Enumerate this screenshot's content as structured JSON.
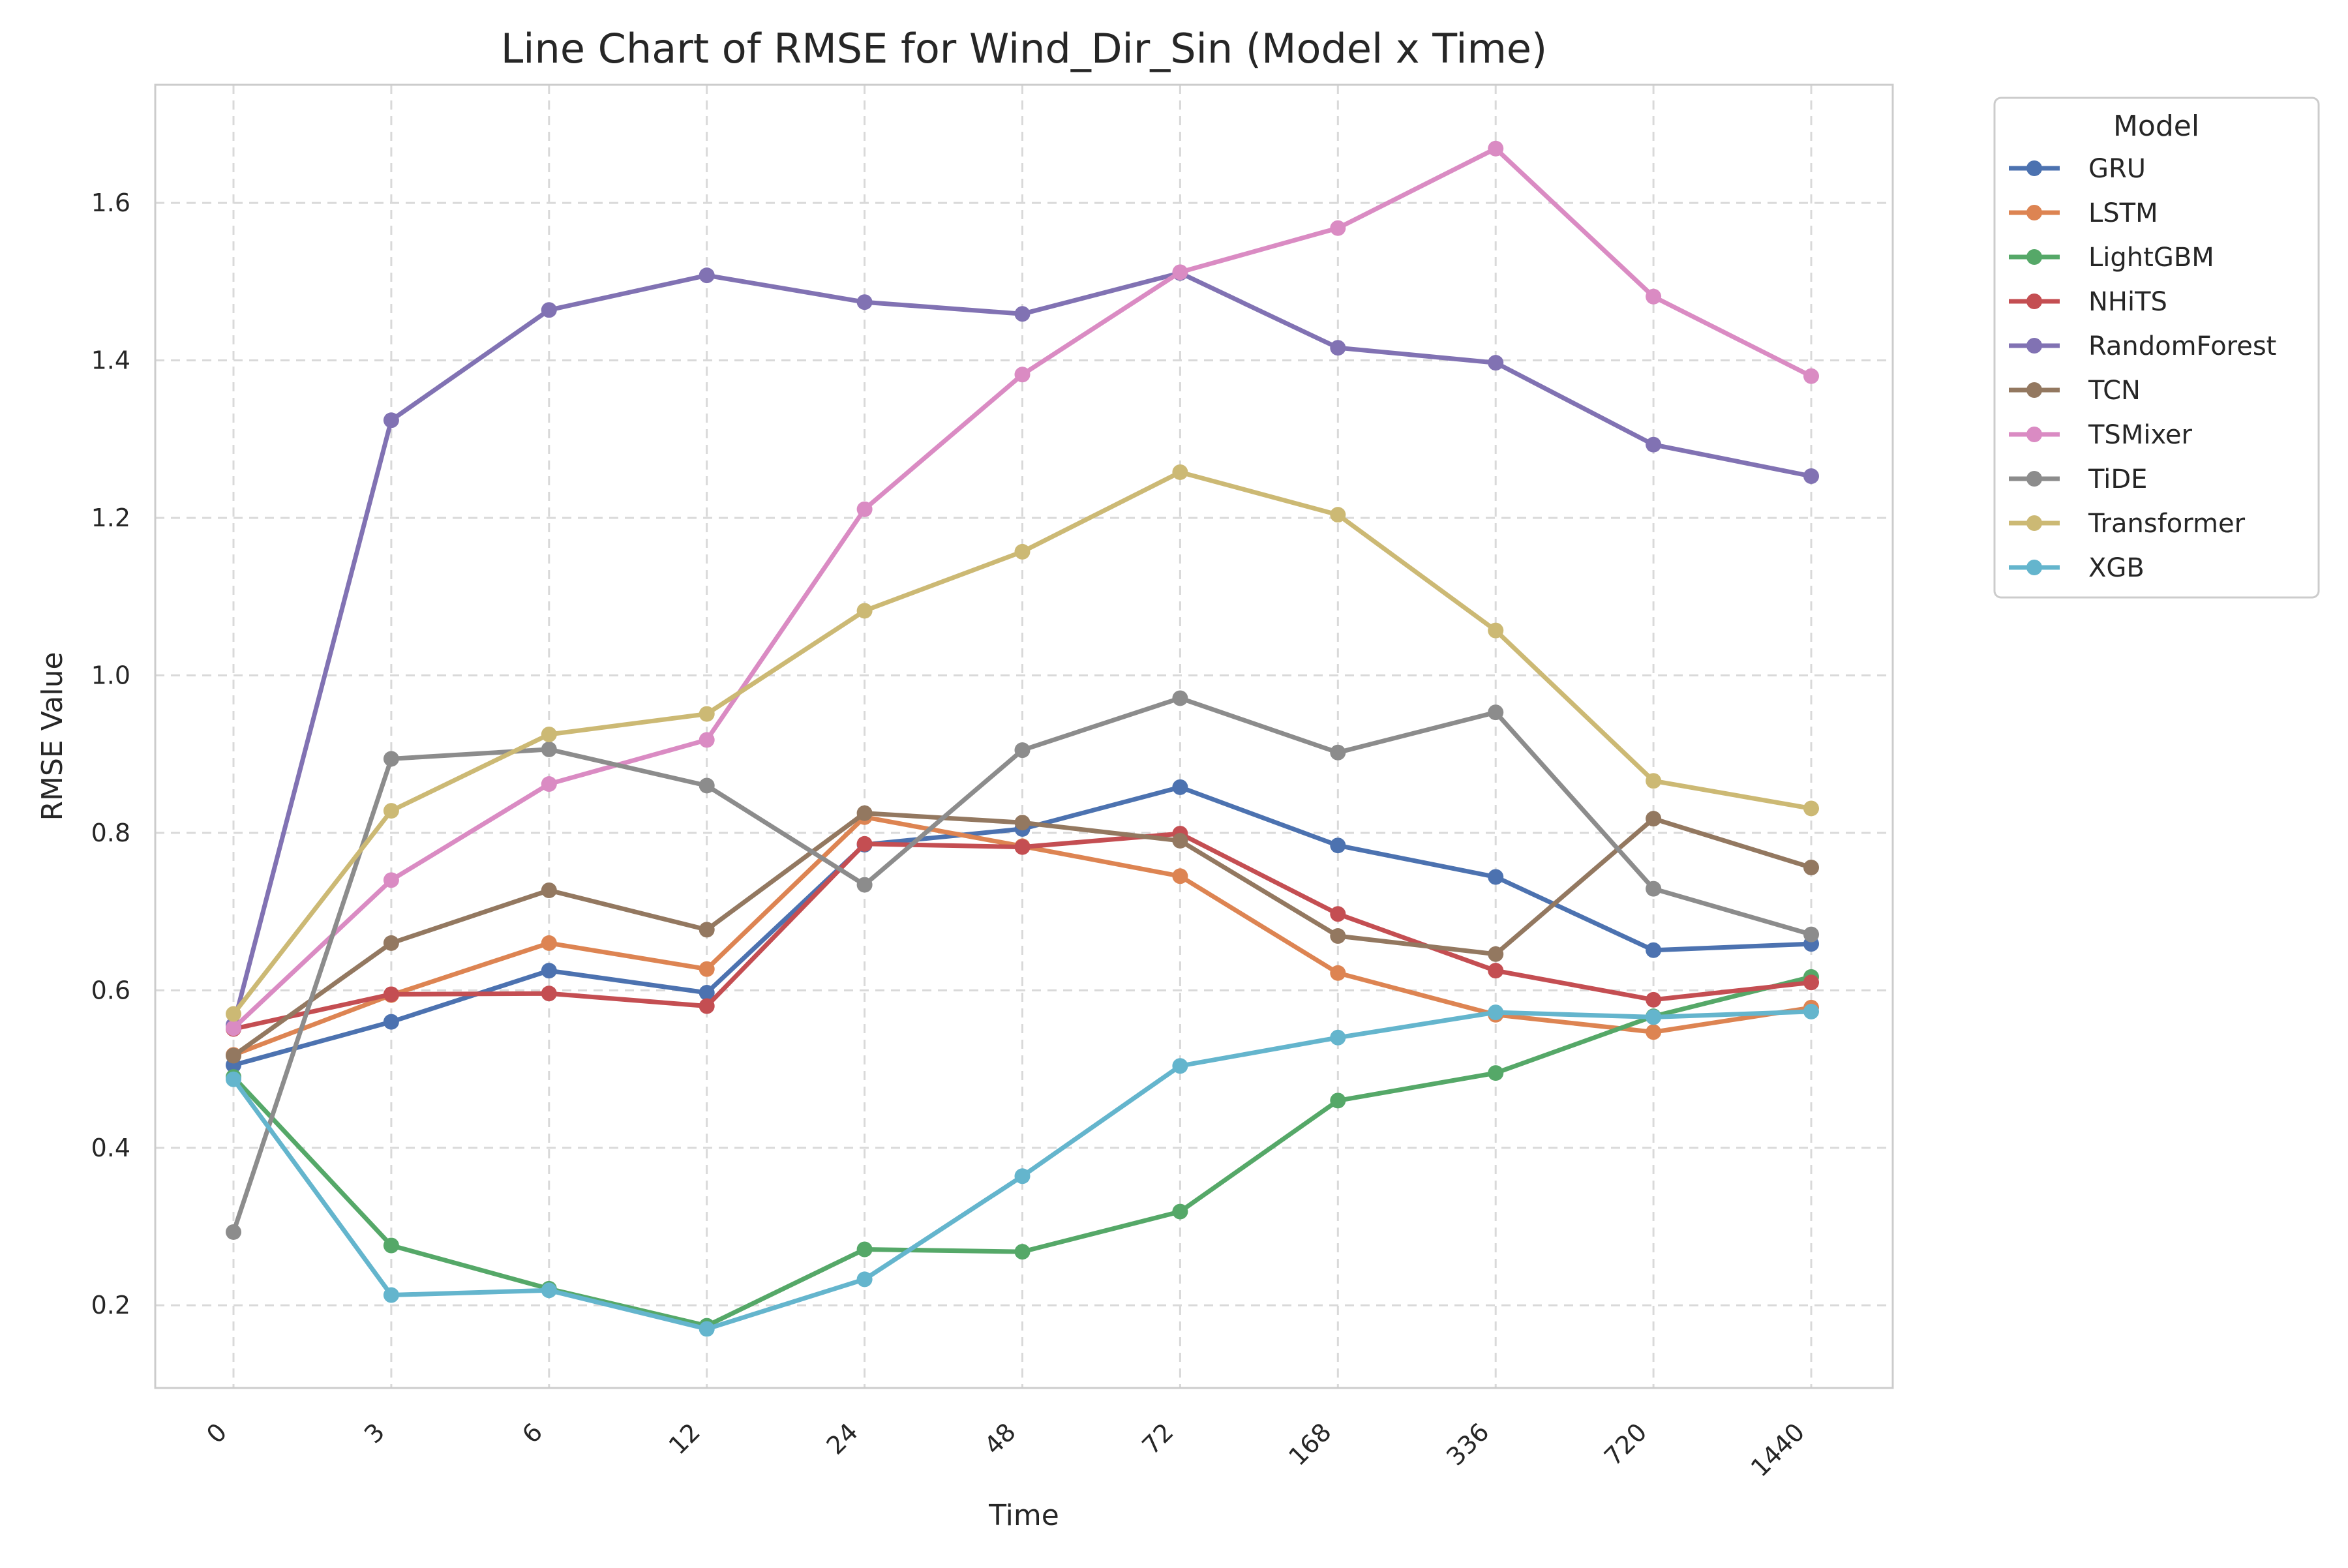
{
  "chart_data": {
    "type": "line",
    "title": "Line Chart of RMSE for Wind_Dir_Sin (Model x Time)",
    "xlabel": "Time",
    "ylabel": "RMSE Value",
    "categories": [
      "0",
      "3",
      "6",
      "12",
      "24",
      "48",
      "72",
      "168",
      "336",
      "720",
      "1440"
    ],
    "ylim": [
      0.095,
      1.75
    ],
    "yticks": [
      0.2,
      0.4,
      0.6,
      0.8,
      1.0,
      1.2,
      1.4,
      1.6
    ],
    "ytick_labels": [
      "0.2",
      "0.4",
      "0.6",
      "0.8",
      "1.0",
      "1.2",
      "1.4",
      "1.6"
    ],
    "grid": true,
    "legend": {
      "title": "Model",
      "placement": "outside-top-right"
    },
    "series": [
      {
        "name": "GRU",
        "color": "#4c72b0",
        "values": [
          0.505,
          0.56,
          0.625,
          0.597,
          0.785,
          0.805,
          0.858,
          0.784,
          0.744,
          0.651,
          0.659
        ]
      },
      {
        "name": "LSTM",
        "color": "#dd8452",
        "values": [
          0.518,
          0.594,
          0.66,
          0.627,
          0.82,
          0.783,
          0.745,
          0.622,
          0.569,
          0.547,
          0.578
        ]
      },
      {
        "name": "LightGBM",
        "color": "#55a868",
        "values": [
          0.49,
          0.276,
          0.221,
          0.174,
          0.271,
          0.268,
          0.319,
          0.46,
          0.495,
          0.567,
          0.617
        ]
      },
      {
        "name": "NHiTS",
        "color": "#c44e52",
        "values": [
          0.551,
          0.595,
          0.596,
          0.58,
          0.786,
          0.782,
          0.799,
          0.697,
          0.625,
          0.588,
          0.61
        ]
      },
      {
        "name": "RandomForest",
        "color": "#8172b3",
        "values": [
          0.556,
          1.324,
          1.464,
          1.508,
          1.474,
          1.459,
          1.511,
          1.416,
          1.397,
          1.293,
          1.253
        ]
      },
      {
        "name": "TCN",
        "color": "#937860",
        "values": [
          0.517,
          0.66,
          0.727,
          0.677,
          0.825,
          0.813,
          0.79,
          0.669,
          0.646,
          0.818,
          0.756
        ]
      },
      {
        "name": "TSMixer",
        "color": "#da8bc3",
        "values": [
          0.552,
          0.74,
          0.862,
          0.918,
          1.211,
          1.382,
          1.512,
          1.568,
          1.669,
          1.481,
          1.38
        ]
      },
      {
        "name": "TiDE",
        "color": "#8c8c8c",
        "values": [
          0.293,
          0.894,
          0.906,
          0.86,
          0.734,
          0.905,
          0.971,
          0.902,
          0.953,
          0.729,
          0.671
        ]
      },
      {
        "name": "Transformer",
        "color": "#ccb974",
        "values": [
          0.57,
          0.828,
          0.925,
          0.951,
          1.082,
          1.157,
          1.258,
          1.204,
          1.057,
          0.866,
          0.831
        ]
      },
      {
        "name": "XGB",
        "color": "#64b5cd",
        "values": [
          0.487,
          0.213,
          0.219,
          0.17,
          0.233,
          0.364,
          0.504,
          0.54,
          0.572,
          0.566,
          0.573
        ]
      }
    ]
  }
}
